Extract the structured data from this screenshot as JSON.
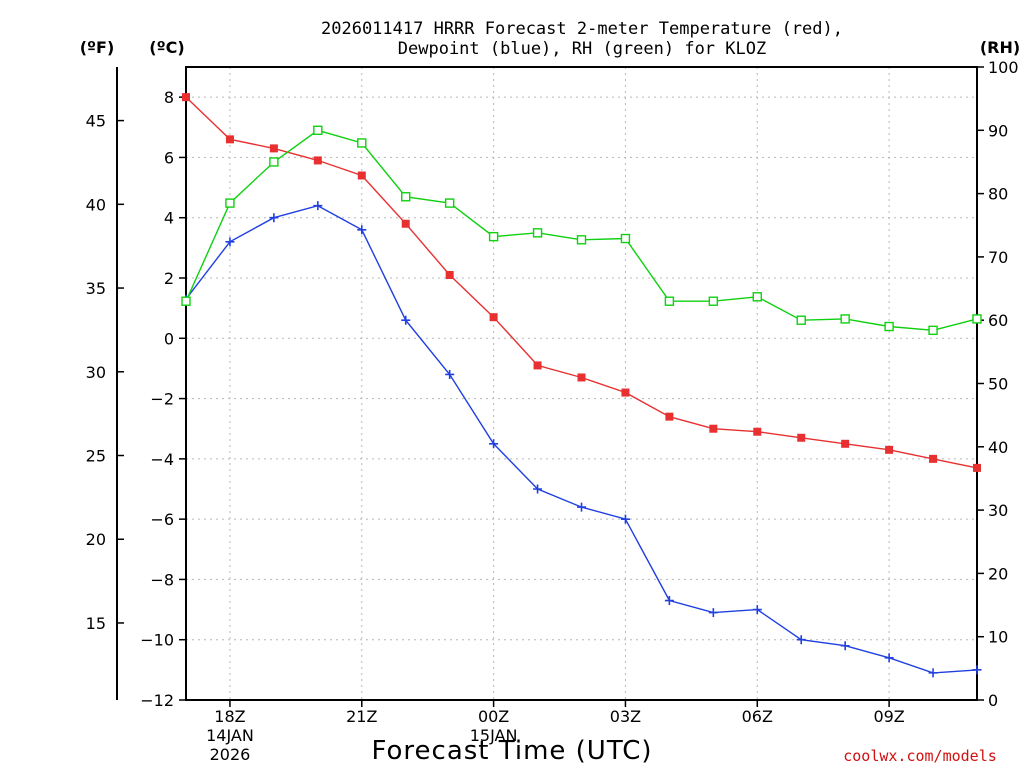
{
  "chart_data": {
    "type": "line",
    "title_line1": "2026011417 HRRR Forecast 2-meter Temperature (red),",
    "title_line2": "Dewpoint (blue), RH (green) for KLOZ",
    "unit_f": "(ºF)",
    "unit_c": "(ºC)",
    "unit_rh": "(RH)",
    "xlabel": "Forecast Time (UTC)",
    "credit": "coolwx.com/models",
    "x_hours": [
      17,
      18,
      19,
      20,
      21,
      22,
      23,
      24,
      25,
      26,
      27,
      28,
      29,
      30,
      31,
      32,
      33,
      34,
      35
    ],
    "x_range": [
      17,
      35
    ],
    "x_ticks": [
      {
        "hour": 18,
        "lines": [
          "18Z",
          "14JAN",
          "2026"
        ]
      },
      {
        "hour": 21,
        "lines": [
          "21Z"
        ]
      },
      {
        "hour": 24,
        "lines": [
          "00Z",
          "15JAN"
        ]
      },
      {
        "hour": 27,
        "lines": [
          "03Z"
        ]
      },
      {
        "hour": 30,
        "lines": [
          "06Z"
        ]
      },
      {
        "hour": 33,
        "lines": [
          "09Z"
        ]
      }
    ],
    "ylim_c": [
      -12,
      9
    ],
    "yticks_c": [
      "8",
      "6",
      "4",
      "2",
      "0",
      "−2",
      "−4",
      "−6",
      "−8",
      "−10",
      "−12"
    ],
    "yticks_c_values": [
      8,
      6,
      4,
      2,
      0,
      -2,
      -4,
      -6,
      -8,
      -10,
      -12
    ],
    "yticks_f": [
      "45",
      "40",
      "35",
      "30",
      "25",
      "20",
      "15"
    ],
    "yticks_f_values": [
      45,
      40,
      35,
      30,
      25,
      20,
      15
    ],
    "ylim_rh": [
      0,
      100
    ],
    "yticks_rh": [
      "100",
      "90",
      "80",
      "70",
      "60",
      "50",
      "40",
      "30",
      "20",
      "10",
      "0"
    ],
    "yticks_rh_values": [
      100,
      90,
      80,
      70,
      60,
      50,
      40,
      30,
      20,
      10,
      0
    ],
    "series": [
      {
        "name": "Temperature",
        "color": "#e83030",
        "marker": "filled-square",
        "axis": "c",
        "values": [
          8.0,
          6.6,
          6.3,
          5.9,
          5.4,
          3.8,
          2.1,
          0.7,
          -0.9,
          -1.3,
          -1.8,
          -2.6,
          -3.0,
          -3.1,
          -3.3,
          -3.5,
          -3.7,
          -4.0,
          -4.3
        ]
      },
      {
        "name": "Dewpoint",
        "color": "#2040e0",
        "marker": "plus",
        "axis": "c",
        "values": [
          1.3,
          3.2,
          4.0,
          4.4,
          3.6,
          0.6,
          -1.2,
          -3.5,
          -5.0,
          -5.6,
          -6.0,
          -8.7,
          -9.1,
          -9.0,
          -10.0,
          -10.2,
          -10.6,
          -11.1,
          -11.0
        ]
      },
      {
        "name": "RH",
        "color": "#10d010",
        "marker": "open-square",
        "axis": "rh",
        "values": [
          63,
          78.5,
          85,
          90,
          88,
          79.5,
          78.5,
          73.2,
          73.8,
          72.7,
          72.9,
          63,
          63,
          63.7,
          60,
          60.2,
          59,
          58.4,
          60.2
        ]
      }
    ]
  }
}
